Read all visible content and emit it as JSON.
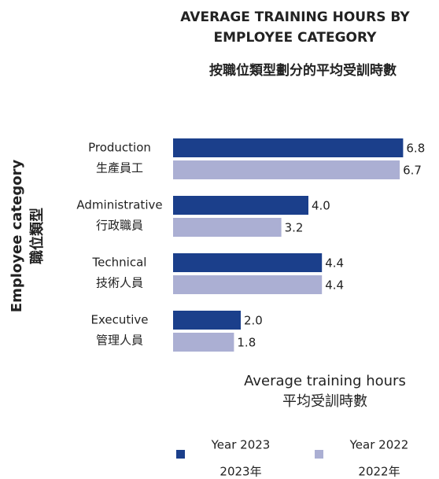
{
  "chart_data": {
    "type": "barh",
    "title": [
      "AVERAGE TRAINING HOURS BY",
      "EMPLOYEE CATEGORY"
    ],
    "subtitle": "按職位類型劃分的平均受訓時數",
    "y_label": [
      "Employee category",
      "職位類型"
    ],
    "x_label": [
      "Average training hours",
      "平均受訓時數"
    ],
    "categories": [
      [
        "Production",
        "生產員工"
      ],
      [
        "Administrative",
        "行政職員"
      ],
      [
        "Technical",
        "技術人員"
      ],
      [
        "Executive",
        "管理人員"
      ]
    ],
    "series": [
      {
        "name": [
          "Year 2023",
          "2023年"
        ],
        "color": "#1b3f8b",
        "values": [
          6.8,
          4.0,
          4.4,
          2.0
        ],
        "value_labels": [
          "6.8",
          "4.0",
          "4.4",
          "2.0"
        ]
      },
      {
        "name": [
          "Year 2022",
          "2022年"
        ],
        "color": "#abafd3",
        "values": [
          6.7,
          3.2,
          4.4,
          1.8
        ],
        "value_labels": [
          "6.7",
          "3.2",
          "4.4",
          "1.8"
        ]
      }
    ],
    "xlim": [
      0,
      8
    ]
  }
}
